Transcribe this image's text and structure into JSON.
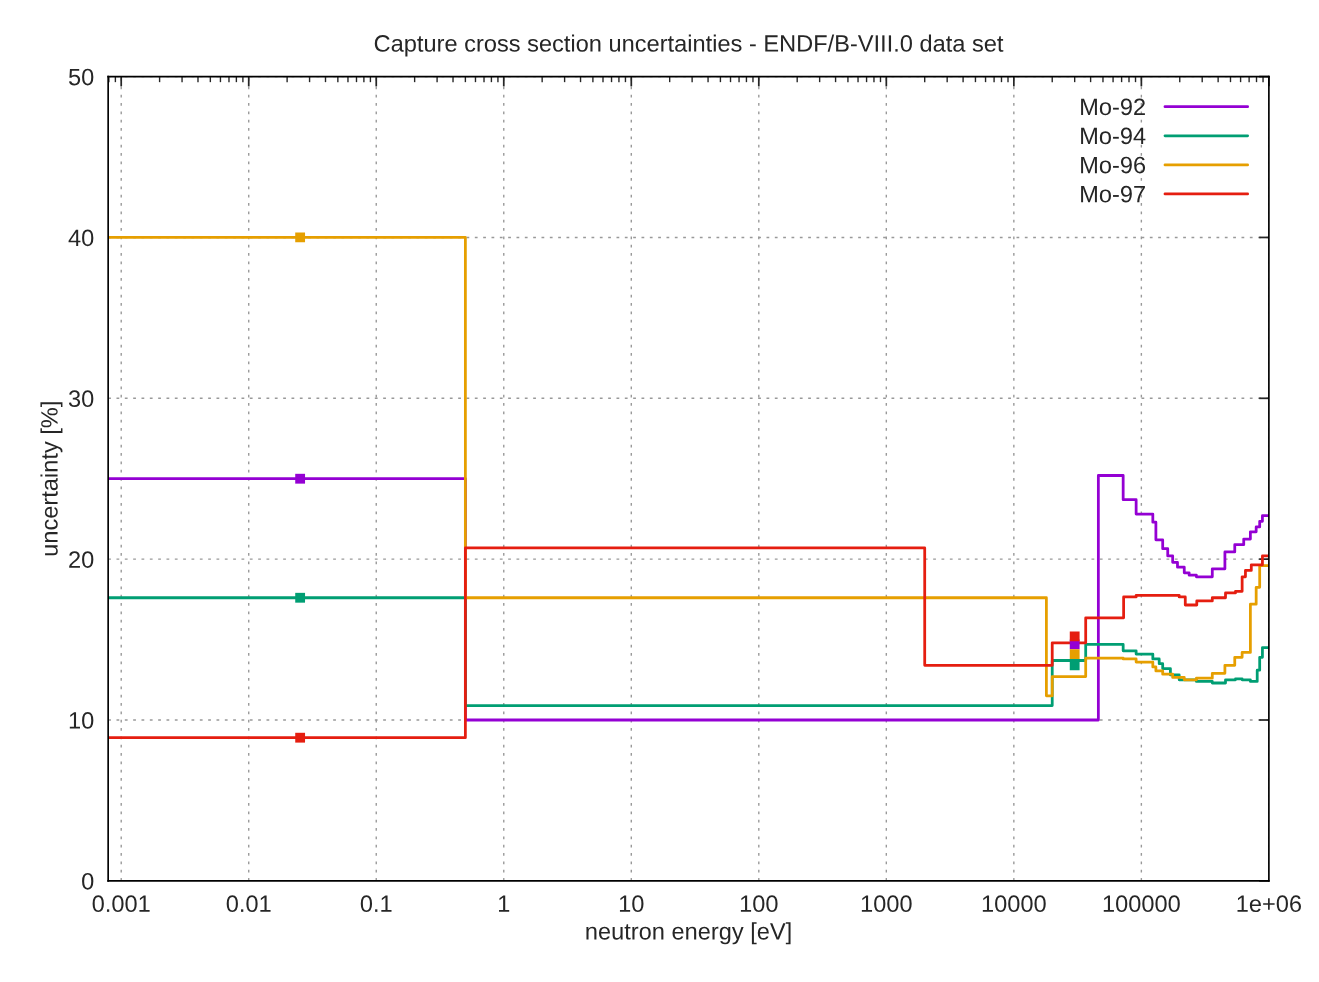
{
  "chart_data": {
    "type": "step",
    "title": "Capture cross section uncertainties - ENDF/B-VIII.0 data set",
    "xlabel": "neutron energy [eV]",
    "ylabel": "uncertainty [%]",
    "log": "x",
    "grid": true,
    "legend": "top right",
    "line_style": "solid",
    "xlim": [
      0.00079,
      1000000
    ],
    "ylim": [
      0,
      50
    ],
    "xticks": [
      {
        "value": 0.001,
        "label": "0.001"
      },
      {
        "value": 0.01,
        "label": "0.01"
      },
      {
        "value": 0.1,
        "label": "0.1"
      },
      1,
      10,
      100,
      1000,
      10000,
      100000,
      {
        "value": 1000000,
        "label": "1e+06"
      }
    ],
    "yticks": [
      0,
      10,
      20,
      30,
      40,
      50
    ],
    "series": [
      {
        "name": "Mo-92",
        "color": "#9400d3",
        "x": [
          0.00079,
          0.5,
          46000,
          72000,
          91000,
          123000,
          130000,
          147000,
          161000,
          176000,
          192000,
          217000,
          237000,
          270000,
          360000,
          452000,
          540000,
          635000,
          716000,
          795000,
          847000,
          890000,
          1000000
        ],
        "values": [
          25,
          10,
          25.2,
          23.7,
          22.8,
          22.3,
          21.2,
          20.65,
          20.2,
          19.8,
          19.5,
          19.15,
          19.0,
          18.9,
          19.4,
          20.45,
          20.9,
          21.25,
          21.7,
          22.0,
          22.35,
          22.7,
          22.7
        ]
      },
      {
        "name": "Mo-94",
        "color": "#009e73",
        "x": [
          0.00079,
          0.5,
          20000,
          36600,
          72000,
          91000,
          123000,
          138000,
          147000,
          169000,
          198000,
          270000,
          360000,
          457000,
          547000,
          617000,
          716000,
          810000,
          847000,
          890000,
          1000000
        ],
        "values": [
          17.6,
          10.9,
          13.7,
          14.7,
          14.3,
          14.1,
          13.8,
          13.5,
          13.2,
          12.8,
          12.5,
          12.4,
          12.3,
          12.5,
          12.55,
          12.5,
          12.4,
          13.1,
          13.9,
          14.5,
          14.5
        ]
      },
      {
        "name": "Mo-96",
        "color": "#e69f00",
        "x": [
          0.00079,
          0.5,
          18000,
          20000,
          36600,
          72000,
          91000,
          123000,
          130000,
          147000,
          176000,
          217000,
          270000,
          360000,
          452000,
          540000,
          617000,
          716000,
          795000,
          847000,
          1000000
        ],
        "values": [
          40,
          17.6,
          11.5,
          12.7,
          13.85,
          13.8,
          13.6,
          13.3,
          13.05,
          12.85,
          12.65,
          12.5,
          12.6,
          12.9,
          13.4,
          13.9,
          14.2,
          17.2,
          18.25,
          19.6,
          19.6
        ]
      },
      {
        "name": "Mo-97",
        "color": "#e51e10",
        "x": [
          0.00079,
          0.5,
          2000,
          20000,
          36600,
          72600,
          91000,
          198000,
          221000,
          272000,
          360000,
          457000,
          547000,
          617000,
          655000,
          728000,
          890000,
          1000000
        ],
        "values": [
          8.9,
          20.7,
          13.4,
          14.8,
          16.35,
          17.65,
          17.75,
          17.65,
          17.15,
          17.4,
          17.6,
          17.9,
          18.0,
          18.9,
          19.3,
          19.65,
          20.2,
          20.2
        ]
      },
      {
        "type": "scatter",
        "marker": "square",
        "color": "#9400d3",
        "x": [
          0.0253,
          30000
        ],
        "values": [
          25,
          14.7
        ]
      },
      {
        "type": "scatter",
        "marker": "square",
        "color": "#009e73",
        "x": [
          0.0253,
          30000
        ],
        "values": [
          17.6,
          13.4
        ]
      },
      {
        "type": "scatter",
        "marker": "square",
        "color": "#e69f00",
        "x": [
          0.0253,
          30000
        ],
        "values": [
          40,
          14.1
        ]
      },
      {
        "type": "scatter",
        "marker": "square",
        "color": "#e51e10",
        "x": [
          0.0253,
          30000
        ],
        "values": [
          8.9,
          15.2
        ]
      }
    ]
  }
}
